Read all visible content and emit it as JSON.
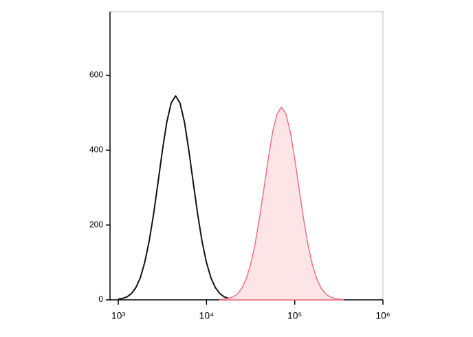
{
  "chart_data": {
    "type": "histogram-overlay",
    "xscale": "log",
    "xlim": [
      806,
      1000000
    ],
    "ylim": [
      0,
      770
    ],
    "xticks": [
      {
        "value": 1000,
        "label": "10³"
      },
      {
        "value": 10000,
        "label": "10⁴"
      },
      {
        "value": 100000,
        "label": "10⁵"
      },
      {
        "value": 1000000,
        "label": "10⁶"
      }
    ],
    "yticks": [
      0,
      200,
      400,
      600
    ],
    "series": [
      {
        "color": "#111111",
        "x": [
          1000,
          1122,
          1259,
          1413,
          1585,
          1778,
          1995,
          2239,
          2512,
          2818,
          3162,
          3548,
          3981,
          4467,
          5012,
          5623,
          6310,
          7079,
          7943,
          8913,
          10000,
          11220,
          12589,
          14125,
          15849,
          17783
        ],
        "values": [
          2,
          4,
          8,
          17,
          33,
          59,
          100,
          156,
          229,
          313,
          399,
          475,
          526,
          545,
          526,
          475,
          399,
          313,
          229,
          156,
          100,
          59,
          33,
          17,
          8,
          4
        ]
      },
      {
        "color": "#f07080",
        "fill": "#fde4e7",
        "x": [
          14125,
          15849,
          17783,
          19953,
          22387,
          25119,
          28184,
          31623,
          35481,
          39811,
          44668,
          50119,
          56234,
          63096,
          70795,
          79433,
          89125,
          100000,
          112202,
          125893,
          141254,
          158489,
          177828,
          199526,
          223872,
          251189,
          281838,
          316228,
          354813
        ],
        "values": [
          1,
          2,
          4,
          8,
          16,
          31,
          56,
          94,
          148,
          217,
          296,
          377,
          449,
          497,
          515,
          497,
          449,
          377,
          296,
          217,
          148,
          94,
          56,
          31,
          16,
          8,
          4,
          2,
          1
        ]
      }
    ]
  }
}
